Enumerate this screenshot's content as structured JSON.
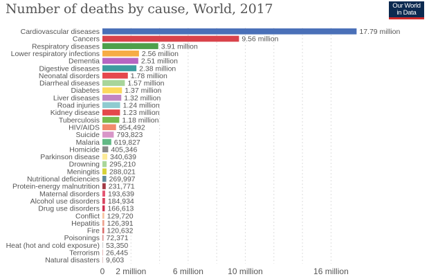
{
  "header": {
    "title": "Number of deaths by cause, World, 2017",
    "logo_line1": "Our World",
    "logo_line2": "in Data"
  },
  "chart_data": {
    "type": "bar",
    "orientation": "horizontal",
    "title": "Number of deaths by cause, World, 2017",
    "xlabel": "",
    "ylabel": "",
    "xlim": [
      0,
      18000000
    ],
    "grid": true,
    "x_ticks": [
      {
        "value": 0,
        "label": "0"
      },
      {
        "value": 2000000,
        "label": "2 million"
      },
      {
        "value": 6000000,
        "label": "6 million"
      },
      {
        "value": 10000000,
        "label": "10 million"
      },
      {
        "value": 16000000,
        "label": "16 million"
      }
    ],
    "gridline_values": [
      2000000,
      4000000,
      6000000,
      8000000,
      10000000,
      12000000,
      14000000,
      16000000
    ],
    "bars": [
      {
        "category": "Cardiovascular diseases",
        "value": 17790000,
        "label": "17.79 million",
        "color": "#4a70b8"
      },
      {
        "category": "Cancers",
        "value": 9560000,
        "label": "9.56 million",
        "color": "#d9434b"
      },
      {
        "category": "Respiratory diseases",
        "value": 3910000,
        "label": "3.91 million",
        "color": "#4da04a"
      },
      {
        "category": "Lower respiratory infections",
        "value": 2560000,
        "label": "2.56 million",
        "color": "#f6ac45"
      },
      {
        "category": "Dementia",
        "value": 2510000,
        "label": "2.51 million",
        "color": "#b765c2"
      },
      {
        "category": "Digestive diseases",
        "value": 2380000,
        "label": "2.38 million",
        "color": "#3d9c9f"
      },
      {
        "category": "Neonatal disorders",
        "value": 1780000,
        "label": "1.78 million",
        "color": "#e5484d"
      },
      {
        "category": "Diarrheal diseases",
        "value": 1570000,
        "label": "1.57 million",
        "color": "#a8d59a"
      },
      {
        "category": "Diabetes",
        "value": 1370000,
        "label": "1.37 million",
        "color": "#fcd95c"
      },
      {
        "category": "Liver diseases",
        "value": 1320000,
        "label": "1.32 million",
        "color": "#c185c2"
      },
      {
        "category": "Road injuries",
        "value": 1240000,
        "label": "1.24 million",
        "color": "#8fcbd0"
      },
      {
        "category": "Kidney disease",
        "value": 1230000,
        "label": "1.23 million",
        "color": "#e4484b"
      },
      {
        "category": "Tuberculosis",
        "value": 1180000,
        "label": "1.18 million",
        "color": "#78bb4f"
      },
      {
        "category": "HIV/AIDS",
        "value": 954492,
        "label": "954,492",
        "color": "#f28a6c"
      },
      {
        "category": "Suicide",
        "value": 793823,
        "label": "793,823",
        "color": "#d896c8"
      },
      {
        "category": "Malaria",
        "value": 619827,
        "label": "619,827",
        "color": "#63b985"
      },
      {
        "category": "Homicide",
        "value": 405346,
        "label": "405,346",
        "color": "#8a8a8a"
      },
      {
        "category": "Parkinson disease",
        "value": 340639,
        "label": "340,639",
        "color": "#fdeb98"
      },
      {
        "category": "Drowning",
        "value": 295210,
        "label": "295,210",
        "color": "#a9d69a"
      },
      {
        "category": "Meningitis",
        "value": 288021,
        "label": "288,021",
        "color": "#d6d238"
      },
      {
        "category": "Nutritional deficiencies",
        "value": 269997,
        "label": "269,997",
        "color": "#5f8b9a"
      },
      {
        "category": "Protein-energy malnutrition",
        "value": 231771,
        "label": "231,771",
        "color": "#a23a45"
      },
      {
        "category": "Maternal disorders",
        "value": 193639,
        "label": "193,639",
        "color": "#e45774"
      },
      {
        "category": "Alcohol use disorders",
        "value": 184934,
        "label": "184,934",
        "color": "#d94762"
      },
      {
        "category": "Drug use disorders",
        "value": 166613,
        "label": "166,613",
        "color": "#cf3050"
      },
      {
        "category": "Conflict",
        "value": 129720,
        "label": "129,720",
        "color": "#f7c39e"
      },
      {
        "category": "Hepatitis",
        "value": 126391,
        "label": "126,391",
        "color": "#eca08c"
      },
      {
        "category": "Fire",
        "value": 120632,
        "label": "120,632",
        "color": "#da6a68"
      },
      {
        "category": "Poisonings",
        "value": 72371,
        "label": "72,371",
        "color": "#d98a88"
      },
      {
        "category": "Heat (hot and cold exposure)",
        "value": 53350,
        "label": "53,350",
        "color": "#cfcfcf"
      },
      {
        "category": "Terrorism",
        "value": 26445,
        "label": "26,445",
        "color": "#e4b7b7"
      },
      {
        "category": "Natural disasters",
        "value": 9603,
        "label": "9,603",
        "color": "#e0c0c0"
      }
    ]
  }
}
